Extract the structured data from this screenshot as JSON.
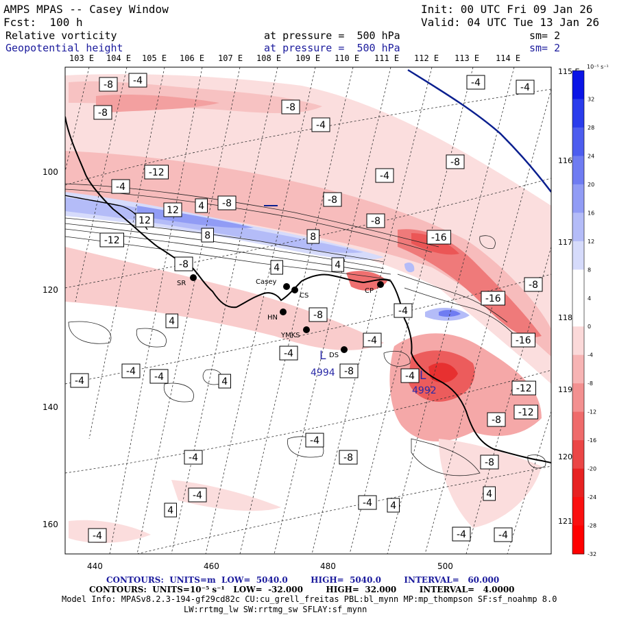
{
  "header": {
    "title": "AMPS MPAS -- Casey Window",
    "init": "Init: 00 UTC Fri 09 Jan 26",
    "fcst": "Fcst:  100 h",
    "valid": "Valid: 04 UTC Tue 13 Jan 26",
    "field1": {
      "name": "Relative vorticity",
      "level": "at pressure =  500 hPa",
      "smooth": "sm= 2"
    },
    "field2": {
      "name": "Geopotential height",
      "level": "at pressure =  500 hPa",
      "smooth": "sm= 2"
    }
  },
  "top_lon_labels": [
    "103 E",
    "104 E",
    "105 E",
    "106 E",
    "107 E",
    "108 E",
    "109 E",
    "110 E",
    "111 E",
    "112 E",
    "113 E",
    "114 E"
  ],
  "right_lon_labels": [
    "115 E",
    "116 E",
    "117 E",
    "118 E",
    "119 E",
    "120 E",
    "121 E"
  ],
  "x_ticks": [
    "440",
    "460",
    "480",
    "500"
  ],
  "y_ticks": [
    "100",
    "120",
    "140",
    "160"
  ],
  "colorbar": {
    "unit": "10⁻⁵ s⁻¹",
    "labels": [
      "32",
      "28",
      "24",
      "20",
      "16",
      "12",
      "8",
      "4",
      "0",
      "-4",
      "-8",
      "-12",
      "-16",
      "-20",
      "-24",
      "-28",
      "-32"
    ],
    "colors": [
      "#0a14e6",
      "#2a3cec",
      "#4d5def",
      "#6f7cf2",
      "#919cf5",
      "#b4bcf8",
      "#d6dbfb",
      "#ffffff",
      "#ffffff",
      "#fbd9d9",
      "#f7b4b4",
      "#f39090",
      "#ef6b6b",
      "#eb4646",
      "#e72222",
      "#fa1010",
      "#ff0000"
    ]
  },
  "stations": [
    {
      "name": "SR"
    },
    {
      "name": "Casey"
    },
    {
      "name": "CS"
    },
    {
      "name": "HN"
    },
    {
      "name": "YMKS"
    },
    {
      "name": "DS"
    },
    {
      "name": "CP"
    }
  ],
  "lows": [
    {
      "letter": "L",
      "value": "4994"
    },
    {
      "letter": "L",
      "value": "4992"
    }
  ],
  "contour_labels": [
    "-8",
    "-4",
    "-8",
    "-8",
    "-4",
    "-4",
    "-4",
    "-12",
    "-4",
    "4",
    "-8",
    "-8",
    "12",
    "12",
    "4",
    "-8",
    "-12",
    "8",
    "8",
    "-16",
    "-4",
    "-8",
    "-8",
    "4",
    "-8",
    "-4",
    "-16",
    "4",
    "-8",
    "-4",
    "-4",
    "-4",
    "-4",
    "-4",
    "4",
    "-8",
    "-4",
    "-16",
    "-12",
    "-12",
    "-8",
    "-8",
    "-4",
    "-4",
    "4",
    "-4",
    "-8",
    "-4",
    "4",
    "4",
    "-4",
    "-4",
    "-4",
    "-4",
    "4"
  ],
  "footer": {
    "contours1": "CONTOURS:  UNITS=m  LOW=  5040.0        HIGH=  5040.0        INTERVAL=   60.000",
    "contours2": "CONTOURS:  UNITS=10⁻⁵ s⁻¹   LOW=  -32.000        HIGH=  32.000        INTERVAL=   4.0000",
    "model_info": "Model Info: MPASv8.2.3-194-gf29cd82c CU:cu_grell_freitas PBL:bl_mynn MP:mp_thompson SF:sf_noahmp 8.0",
    "model_info2": "LW:rrtmg_lw SW:rrtmg_sw SFLAY:sf_mynn"
  }
}
